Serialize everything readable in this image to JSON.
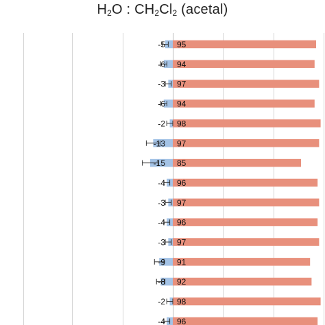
{
  "title": {
    "part1": "H",
    "sub1": "2",
    "part2": "O : CH",
    "sub2": "2",
    "part3": "Cl",
    "sub3": "2",
    "part4": " (acetal)"
  },
  "chart_data": {
    "type": "bar",
    "orientation": "horizontal",
    "title": "H2O : CH2Cl2 (acetal)",
    "grid": true,
    "xlim": [
      -100,
      100
    ],
    "series": [
      {
        "color": "#e8907c",
        "values": [
          95,
          94,
          97,
          94,
          98,
          97,
          85,
          96,
          97,
          96,
          97,
          91,
          92,
          98,
          96
        ]
      },
      {
        "color": "#a4c3e6",
        "values": [
          -5,
          -6,
          -3,
          -6,
          -2,
          -13,
          -15,
          -4,
          -3,
          -4,
          -3,
          -9,
          -8,
          -2,
          -4
        ]
      }
    ],
    "error_bars": "shown on negative series"
  }
}
